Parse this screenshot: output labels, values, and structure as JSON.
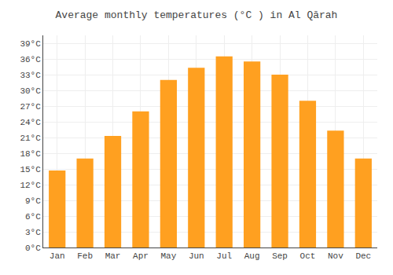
{
  "chart_data": {
    "type": "bar",
    "title": "Average monthly temperatures (°C ) in Al Qārah",
    "categories": [
      "Jan",
      "Feb",
      "Mar",
      "Apr",
      "May",
      "Jun",
      "Jul",
      "Aug",
      "Sep",
      "Oct",
      "Nov",
      "Dec"
    ],
    "values": [
      14.7,
      17.0,
      21.3,
      26.0,
      32.0,
      34.3,
      36.5,
      35.5,
      33.0,
      28.0,
      22.3,
      17.0
    ],
    "color": "#FFA020",
    "ylim": [
      0,
      40.5
    ],
    "yticks": [
      {
        "value": 0,
        "label": "0°C"
      },
      {
        "value": 3,
        "label": "3°C"
      },
      {
        "value": 6,
        "label": "6°C"
      },
      {
        "value": 9,
        "label": "9°C"
      },
      {
        "value": 12,
        "label": "12°C"
      },
      {
        "value": 15,
        "label": "15°C"
      },
      {
        "value": 18,
        "label": "18°C"
      },
      {
        "value": 21,
        "label": "21°C"
      },
      {
        "value": 24,
        "label": "24°C"
      },
      {
        "value": 27,
        "label": "27°C"
      },
      {
        "value": 30,
        "label": "30°C"
      },
      {
        "value": 33,
        "label": "33°C"
      },
      {
        "value": 36,
        "label": "36°C"
      },
      {
        "value": 39,
        "label": "39°C"
      }
    ],
    "grid": true
  }
}
